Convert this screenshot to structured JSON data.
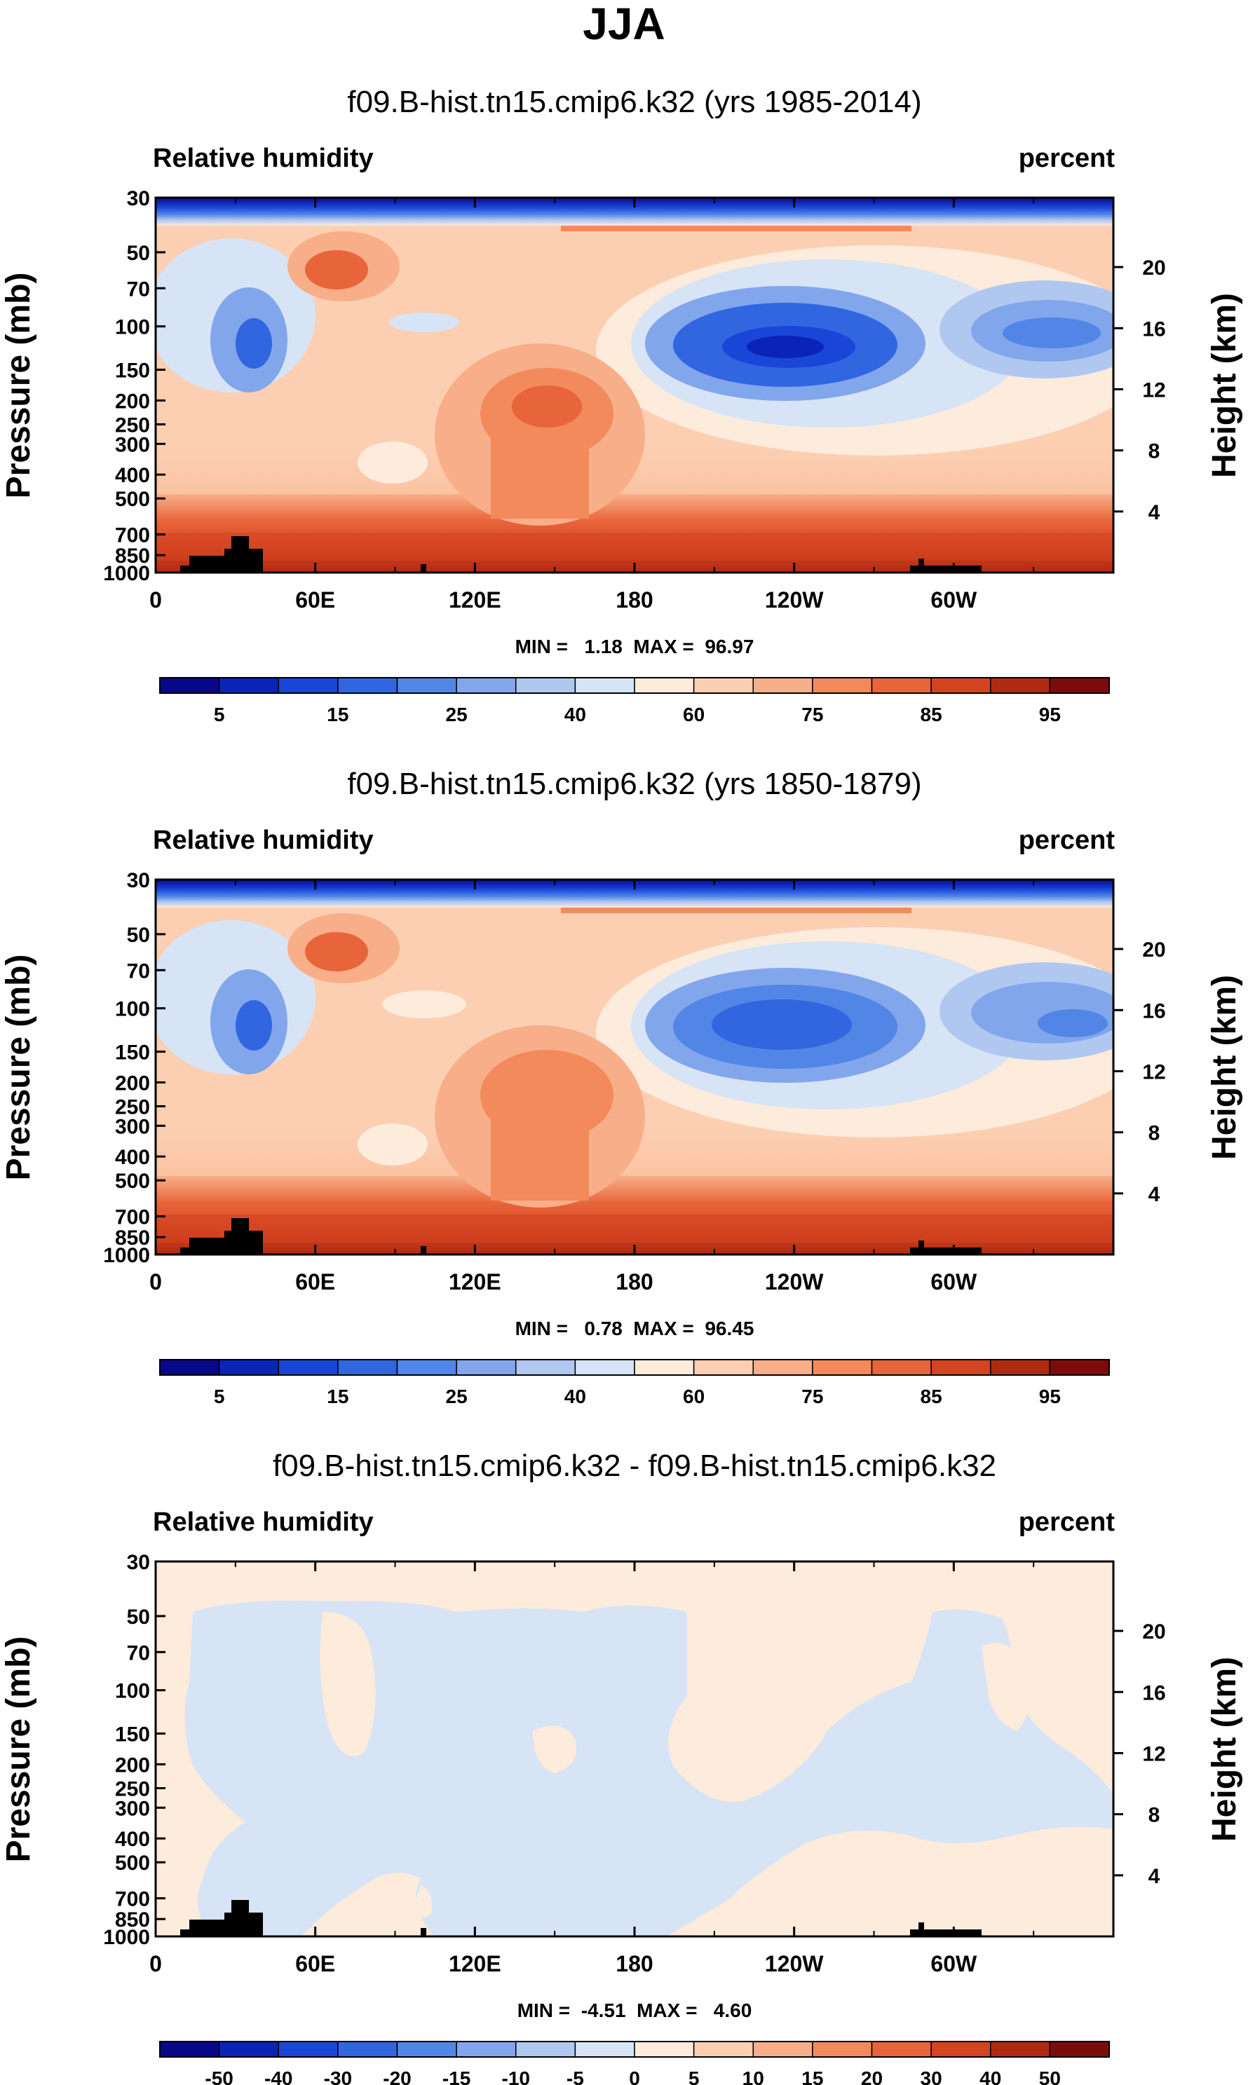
{
  "figure": {
    "title": "JJA"
  },
  "chart_data": [
    {
      "type": "heatmap",
      "id": "p1",
      "title": "f09.B-hist.tn15.cmip6.k32 (yrs 1985-2014)",
      "left_label": "Relative humidity",
      "right_label": "percent",
      "ylabel_left": "Pressure (mb)",
      "ylabel_right": "Height (km)",
      "x_ticks": [
        "0",
        "60E",
        "120E",
        "180",
        "120W",
        "60W"
      ],
      "x_tick_values": [
        0,
        60,
        120,
        180,
        240,
        300
      ],
      "xlim": [
        0,
        360
      ],
      "y_ticks": [
        "30",
        "50",
        "70",
        "100",
        "150",
        "200",
        "250",
        "300",
        "400",
        "500",
        "700",
        "850",
        "1000"
      ],
      "y_tick_values": [
        30,
        50,
        70,
        100,
        150,
        200,
        250,
        300,
        400,
        500,
        700,
        850,
        1000
      ],
      "ylim_mb": [
        30,
        1000
      ],
      "height_ticks": [
        "20",
        "16",
        "12",
        "8",
        "4"
      ],
      "height_tick_values": [
        20,
        16,
        12,
        8,
        4
      ],
      "stats": "MIN =   1.18  MAX =  96.97",
      "min": 1.18,
      "max": 96.97,
      "colorbar": {
        "levels": [
          5,
          10,
          15,
          20,
          25,
          30,
          40,
          50,
          60,
          70,
          75,
          80,
          85,
          90,
          95
        ],
        "labels": [
          "5",
          "15",
          "25",
          "40",
          "60",
          "75",
          "85",
          "95"
        ],
        "colors": [
          "#08088a",
          "#0a24b8",
          "#1a46d8",
          "#3166e0",
          "#5286e6",
          "#82a6ec",
          "#b0c8f0",
          "#d6e4f6",
          "#fdebdc",
          "#fccfb2",
          "#f8ae88",
          "#f28a5c",
          "#e8643a",
          "#d44420",
          "#b02a12",
          "#7c0c0c"
        ]
      }
    },
    {
      "type": "heatmap",
      "id": "p2",
      "title": "f09.B-hist.tn15.cmip6.k32 (yrs 1850-1879)",
      "left_label": "Relative humidity",
      "right_label": "percent",
      "ylabel_left": "Pressure (mb)",
      "ylabel_right": "Height (km)",
      "x_ticks": [
        "0",
        "60E",
        "120E",
        "180",
        "120W",
        "60W"
      ],
      "x_tick_values": [
        0,
        60,
        120,
        180,
        240,
        300
      ],
      "xlim": [
        0,
        360
      ],
      "y_ticks": [
        "30",
        "50",
        "70",
        "100",
        "150",
        "200",
        "250",
        "300",
        "400",
        "500",
        "700",
        "850",
        "1000"
      ],
      "y_tick_values": [
        30,
        50,
        70,
        100,
        150,
        200,
        250,
        300,
        400,
        500,
        700,
        850,
        1000
      ],
      "ylim_mb": [
        30,
        1000
      ],
      "height_ticks": [
        "20",
        "16",
        "12",
        "8",
        "4"
      ],
      "height_tick_values": [
        20,
        16,
        12,
        8,
        4
      ],
      "stats": "MIN =   0.78  MAX =  96.45",
      "min": 0.78,
      "max": 96.45,
      "colorbar": {
        "levels": [
          5,
          10,
          15,
          20,
          25,
          30,
          40,
          50,
          60,
          70,
          75,
          80,
          85,
          90,
          95
        ],
        "labels": [
          "5",
          "15",
          "25",
          "40",
          "60",
          "75",
          "85",
          "95"
        ],
        "colors": [
          "#08088a",
          "#0a24b8",
          "#1a46d8",
          "#3166e0",
          "#5286e6",
          "#82a6ec",
          "#b0c8f0",
          "#d6e4f6",
          "#fdebdc",
          "#fccfb2",
          "#f8ae88",
          "#f28a5c",
          "#e8643a",
          "#d44420",
          "#b02a12",
          "#7c0c0c"
        ]
      }
    },
    {
      "type": "heatmap",
      "id": "p3",
      "title": "f09.B-hist.tn15.cmip6.k32 - f09.B-hist.tn15.cmip6.k32",
      "left_label": "Relative humidity",
      "right_label": "percent",
      "ylabel_left": "Pressure (mb)",
      "ylabel_right": "Height (km)",
      "x_ticks": [
        "0",
        "60E",
        "120E",
        "180",
        "120W",
        "60W"
      ],
      "x_tick_values": [
        0,
        60,
        120,
        180,
        240,
        300
      ],
      "xlim": [
        0,
        360
      ],
      "y_ticks": [
        "30",
        "50",
        "70",
        "100",
        "150",
        "200",
        "250",
        "300",
        "400",
        "500",
        "700",
        "850",
        "1000"
      ],
      "y_tick_values": [
        30,
        50,
        70,
        100,
        150,
        200,
        250,
        300,
        400,
        500,
        700,
        850,
        1000
      ],
      "ylim_mb": [
        30,
        1000
      ],
      "height_ticks": [
        "20",
        "16",
        "12",
        "8",
        "4"
      ],
      "height_tick_values": [
        20,
        16,
        12,
        8,
        4
      ],
      "stats": "MIN =  -4.51  MAX =   4.60",
      "min": -4.51,
      "max": 4.6,
      "colorbar": {
        "levels": [
          -50,
          -40,
          -30,
          -20,
          -15,
          -10,
          -5,
          0,
          5,
          10,
          15,
          20,
          30,
          40,
          50
        ],
        "labels": [
          "-50",
          "-40",
          "-30",
          "-20",
          "-15",
          "-10",
          "-5",
          "0",
          "5",
          "10",
          "15",
          "20",
          "30",
          "40",
          "50"
        ],
        "colors": [
          "#08088a",
          "#0a24b8",
          "#1a46d8",
          "#3166e0",
          "#5286e6",
          "#82a6ec",
          "#b0c8f0",
          "#d6e4f6",
          "#fdebdc",
          "#fccfb2",
          "#f8ae88",
          "#f28a5c",
          "#e8643a",
          "#d44420",
          "#b02a12",
          "#7c0c0c"
        ]
      }
    }
  ]
}
